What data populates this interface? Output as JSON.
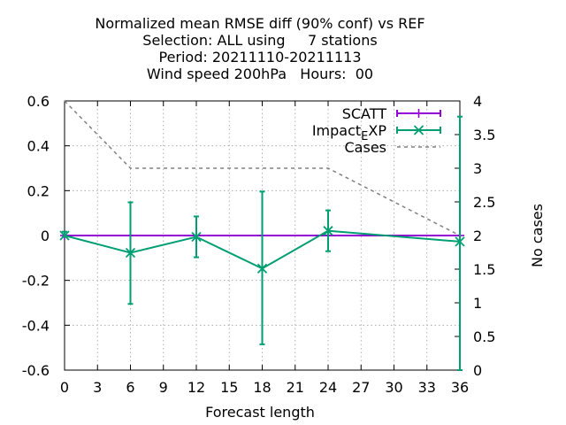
{
  "chart_data": {
    "type": "line",
    "title_lines": [
      "Normalized mean RMSE diff (90% conf) vs REF",
      "Selection: ALL using     7 stations",
      "Period: 20211110-20211113",
      "Wind speed 200hPa   Hours:  00"
    ],
    "xlabel": "Forecast length",
    "y2label": "No cases",
    "xlim": [
      0,
      36
    ],
    "ylim": [
      -0.6,
      0.6
    ],
    "y2lim": [
      0,
      4
    ],
    "x_ticks": [
      0,
      3,
      6,
      9,
      12,
      15,
      18,
      21,
      24,
      27,
      30,
      33,
      36
    ],
    "x_tick_labels": [
      "0",
      "3",
      "6",
      "9",
      "12",
      "15",
      "18",
      "21",
      "24",
      "27",
      "30",
      "33",
      "36"
    ],
    "y_ticks": [
      -0.6,
      -0.4,
      -0.2,
      0,
      0.2,
      0.4,
      0.6
    ],
    "y_tick_labels": [
      "-0.6",
      "-0.4",
      "-0.2",
      "0",
      "0.2",
      "0.4",
      "0.6"
    ],
    "y2_ticks": [
      0,
      0.5,
      1,
      1.5,
      2,
      2.5,
      3,
      3.5,
      4
    ],
    "y2_tick_labels": [
      "0",
      "0.5",
      "1",
      "1.5",
      "2",
      "2.5",
      "3",
      "3.5",
      "4"
    ],
    "grid": true,
    "legend_position": "top-right",
    "series": [
      {
        "name": "SCATT",
        "color": "#9400d3",
        "marker": "plus",
        "x": [
          0,
          6,
          12,
          18,
          24,
          36
        ],
        "y": [
          0,
          0,
          0,
          0,
          0,
          0
        ],
        "err_low": [
          0,
          0,
          0,
          0,
          0,
          0
        ],
        "err_high": [
          0,
          0,
          0,
          0,
          0,
          0
        ]
      },
      {
        "name": "Impact_EXP",
        "label_main": "Impact",
        "label_sub": "E",
        "label_rest": "XP",
        "color": "#009e73",
        "marker": "cross",
        "x": [
          0,
          6,
          12,
          18,
          24,
          36
        ],
        "y": [
          0.0,
          -0.077,
          -0.006,
          -0.147,
          0.021,
          -0.027
        ],
        "err_low": [
          -0.006,
          -0.305,
          -0.097,
          -0.485,
          -0.07,
          -0.6
        ],
        "err_high": [
          0.017,
          0.148,
          0.085,
          0.196,
          0.112,
          0.53
        ]
      },
      {
        "name": "Cases",
        "color": "#808080",
        "dashed": true,
        "axis": "y2",
        "x": [
          0,
          6,
          12,
          18,
          24,
          36
        ],
        "y": [
          4,
          3,
          3,
          3,
          3,
          2
        ]
      }
    ]
  }
}
